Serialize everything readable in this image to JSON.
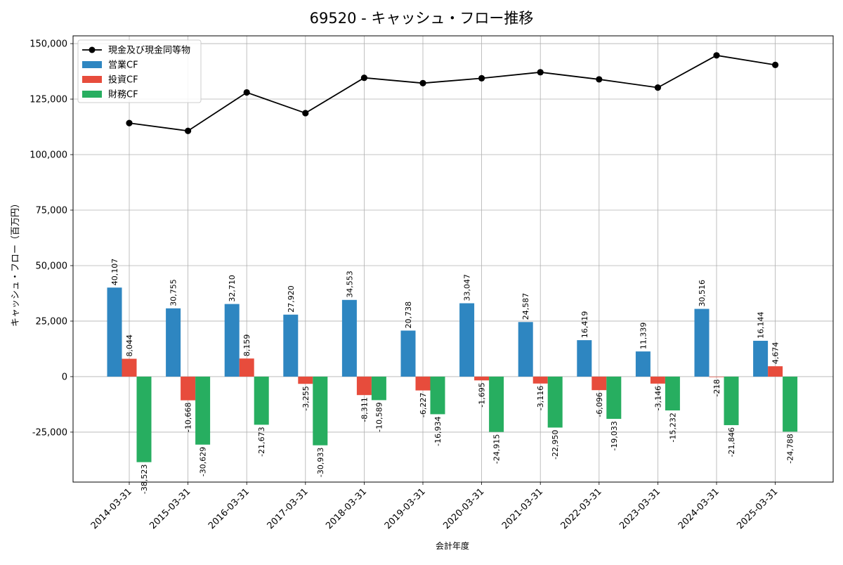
{
  "chart_data": {
    "type": "bar",
    "title": "69520 - キャッシュ・フロー推移",
    "xlabel": "会計年度",
    "ylabel": "キャッシュ・フロー（百万円）",
    "ylim": [
      -47500,
      153500
    ],
    "yticks": [
      -25000,
      0,
      25000,
      50000,
      75000,
      100000,
      125000,
      150000
    ],
    "ytick_labels": [
      "-25,000",
      "0",
      "25,000",
      "50,000",
      "75,000",
      "100,000",
      "125,000",
      "150,000"
    ],
    "grid": true,
    "legend_position": "top-left",
    "categories": [
      "2014-03-31",
      "2015-03-31",
      "2016-03-31",
      "2017-03-31",
      "2018-03-31",
      "2019-03-31",
      "2020-03-31",
      "2021-03-31",
      "2022-03-31",
      "2023-03-31",
      "2024-03-31",
      "2025-03-31"
    ],
    "series": [
      {
        "name": "営業CF",
        "kind": "bar",
        "color": "#2e86c1",
        "values": [
          40107,
          30755,
          32710,
          27920,
          34553,
          20738,
          33047,
          24587,
          16419,
          11339,
          30516,
          16144
        ],
        "labels": [
          "40,107",
          "30,755",
          "32,710",
          "27,920",
          "34,553",
          "20,738",
          "33,047",
          "24,587",
          "16,419",
          "11,339",
          "30,516",
          "16,144"
        ]
      },
      {
        "name": "投資CF",
        "kind": "bar",
        "color": "#e74c3c",
        "values": [
          8044,
          -10668,
          8159,
          -3255,
          -8311,
          -6227,
          -1695,
          -3116,
          -6096,
          -3146,
          -218,
          4674
        ],
        "labels": [
          "8,044",
          "-10,668",
          "8,159",
          "-3,255",
          "-8,311",
          "-6,227",
          "-1,695",
          "-3,116",
          "-6,096",
          "-3,146",
          "-218",
          "4,674"
        ]
      },
      {
        "name": "財務CF",
        "kind": "bar",
        "color": "#27ae60",
        "values": [
          -38523,
          -30629,
          -21673,
          -30933,
          -10589,
          -16934,
          -24915,
          -22950,
          -19033,
          -15232,
          -21846,
          -24788
        ],
        "labels": [
          "-38,523",
          "-30,629",
          "-21,673",
          "-30,933",
          "-10,589",
          "-16,934",
          "-24,915",
          "-22,950",
          "-19,033",
          "-15,232",
          "-21,846",
          "-24,788"
        ]
      },
      {
        "name": "現金及び現金同等物",
        "kind": "line",
        "color": "#000000",
        "values": [
          114200,
          110700,
          128000,
          118700,
          134600,
          132200,
          134400,
          137100,
          133900,
          130200,
          144700,
          140400
        ]
      }
    ]
  }
}
